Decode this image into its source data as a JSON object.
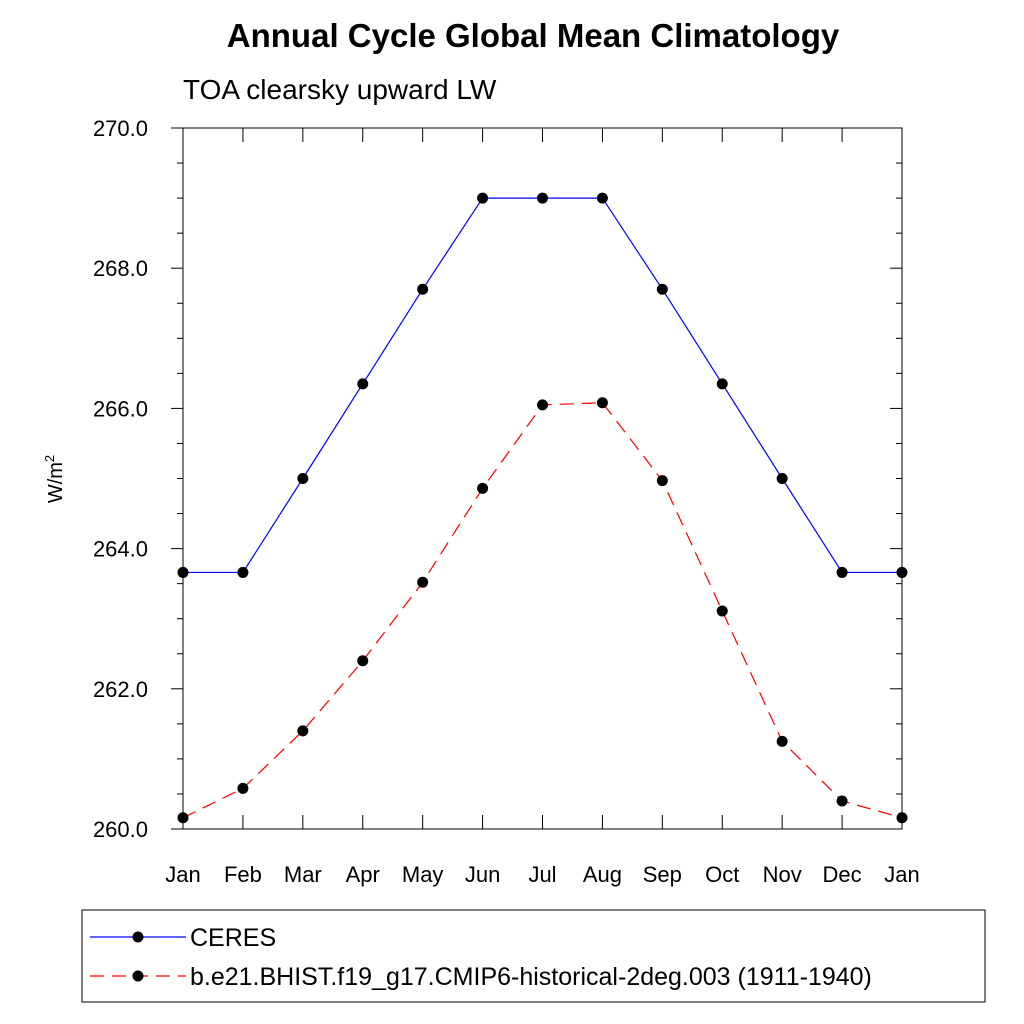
{
  "chart_data": {
    "type": "line",
    "title": "Annual Cycle Global Mean Climatology",
    "subtitle": "TOA clearsky upward LW",
    "ylabel_base": "W/m",
    "ylabel_sup": "2",
    "xlabel": "",
    "categories": [
      "Jan",
      "Feb",
      "Mar",
      "Apr",
      "May",
      "Jun",
      "Jul",
      "Aug",
      "Sep",
      "Oct",
      "Nov",
      "Dec",
      "Jan"
    ],
    "ylim": [
      260.0,
      270.0
    ],
    "yticks": [
      "260.0",
      "262.0",
      "264.0",
      "266.0",
      "268.0",
      "270.0"
    ],
    "grid": false,
    "legend_placement": "bottom",
    "series": [
      {
        "name": "CERES",
        "color": "#0000ff",
        "dash": "solid",
        "marker": "filled-circle",
        "values": [
          263.66,
          263.66,
          265.0,
          266.35,
          267.7,
          269.0,
          269.0,
          269.0,
          267.7,
          266.35,
          265.0,
          263.66,
          263.66
        ]
      },
      {
        "name": "b.e21.BHIST.f19_g17.CMIP6-historical-2deg.003 (1911-1940)",
        "color": "#ff0000",
        "dash": "dashed",
        "marker": "filled-circle",
        "values": [
          260.16,
          260.58,
          261.4,
          262.4,
          263.52,
          264.86,
          266.05,
          266.08,
          264.97,
          263.11,
          261.25,
          260.4,
          260.16
        ]
      }
    ]
  }
}
